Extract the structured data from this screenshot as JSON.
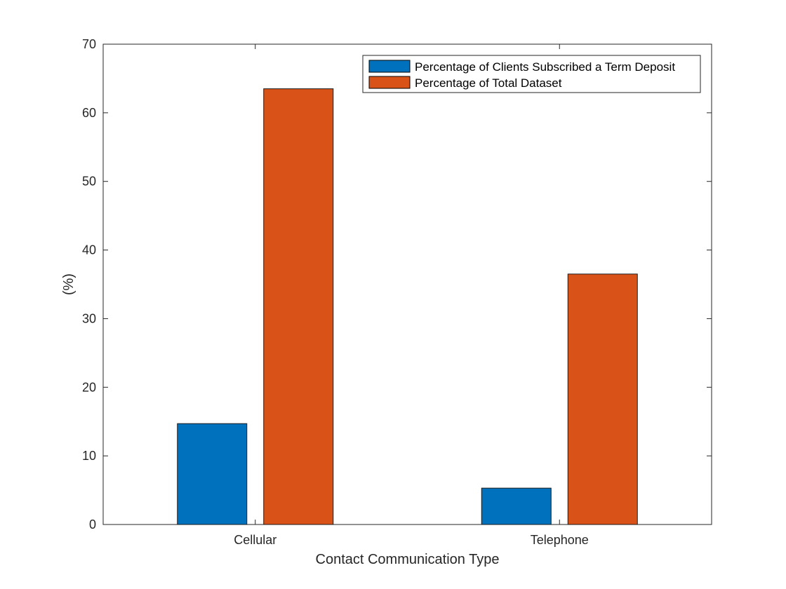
{
  "chart_data": {
    "type": "bar",
    "title": "",
    "xlabel": "Contact Communication Type",
    "ylabel": "(%)",
    "categories": [
      "Cellular",
      "Telephone"
    ],
    "ylim": [
      0,
      70
    ],
    "yticks": [
      0,
      10,
      20,
      30,
      40,
      50,
      60,
      70
    ],
    "grid": false,
    "legend_position": "top-right",
    "series": [
      {
        "name": "Percentage of Clients Subscribed a Term Deposit",
        "color": "#0072BD",
        "values": [
          14.7,
          5.3
        ]
      },
      {
        "name": "Percentage of Total Dataset",
        "color": "#D95319",
        "values": [
          63.5,
          36.5
        ]
      }
    ]
  }
}
